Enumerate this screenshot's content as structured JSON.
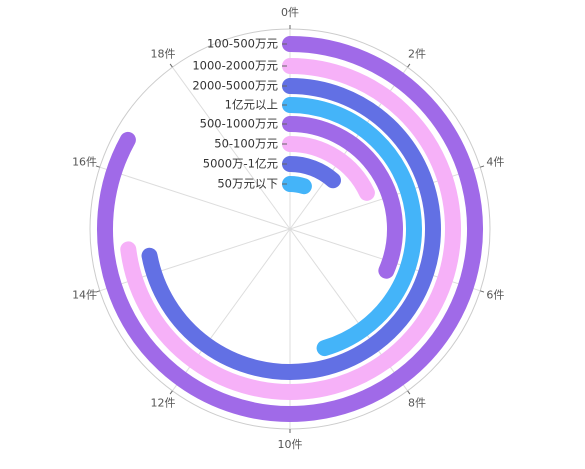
{
  "chart_data": {
    "type": "radial-bar",
    "title": "",
    "unit": "件",
    "axis_max": 20,
    "tick_step": 2,
    "tick_labels": [
      "0件",
      "2件",
      "4件",
      "6件",
      "8件",
      "10件",
      "12件",
      "14件",
      "16件",
      "18件"
    ],
    "categories": [
      "100-500万元",
      "1000-2000万元",
      "2000-5000万元",
      "1亿元以上",
      "500-1000万元",
      "50-100万元",
      "5000万-1亿元",
      "50万元以下"
    ],
    "values": [
      16.6,
      14.6,
      14.4,
      9.1,
      6.3,
      3.6,
      2.3,
      1.0
    ],
    "colors": [
      "#a06ae8",
      "#f6b1f8",
      "#6270e4",
      "#44b4f9",
      "#a06ae8",
      "#f6b1f8",
      "#6270e4",
      "#44b4f9"
    ],
    "grid": true,
    "legend": "none"
  }
}
